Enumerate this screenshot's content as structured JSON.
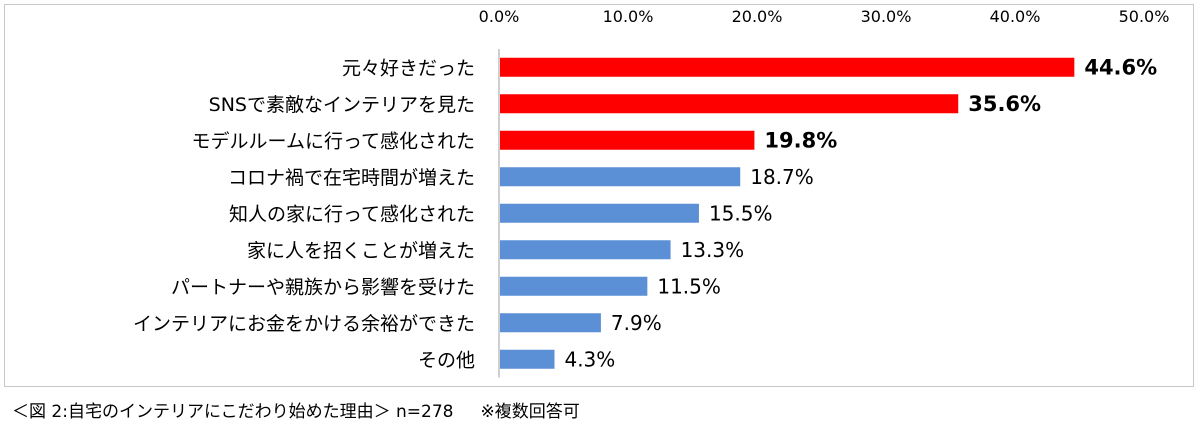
{
  "chart_data": {
    "type": "bar",
    "orientation": "horizontal",
    "categories": [
      "元々好きだった",
      "SNSで素敵なインテリアを見た",
      "モデルルームに行って感化された",
      "コロナ禍で在宅時間が増えた",
      "知人の家に行って感化された",
      "家に人を招くことが増えた",
      "パートナーや親族から影響を受けた",
      "インテリアにお金をかける余裕ができた",
      "その他"
    ],
    "values": [
      44.6,
      35.6,
      19.8,
      18.7,
      15.5,
      13.3,
      11.5,
      7.9,
      4.3
    ],
    "value_labels": [
      "44.6%",
      "35.6%",
      "19.8%",
      "18.7%",
      "15.5%",
      "13.3%",
      "11.5%",
      "7.9%",
      "4.3%"
    ],
    "highlighted": [
      true,
      true,
      true,
      false,
      false,
      false,
      false,
      false,
      false
    ],
    "xlim": [
      0,
      50
    ],
    "xticks": [
      "0.0%",
      "10.0%",
      "20.0%",
      "30.0%",
      "40.0%",
      "50.0%"
    ],
    "xaxis_position": "top",
    "grid": false,
    "colors": {
      "highlight": "#ff0000",
      "normal": "#5b8fd6",
      "axis": "#bfbfbf"
    }
  },
  "caption": {
    "figure_label": "＜図 2:自宅のインテリアにこだわり始めた理由＞ n=278",
    "note": "※複数回答可"
  }
}
